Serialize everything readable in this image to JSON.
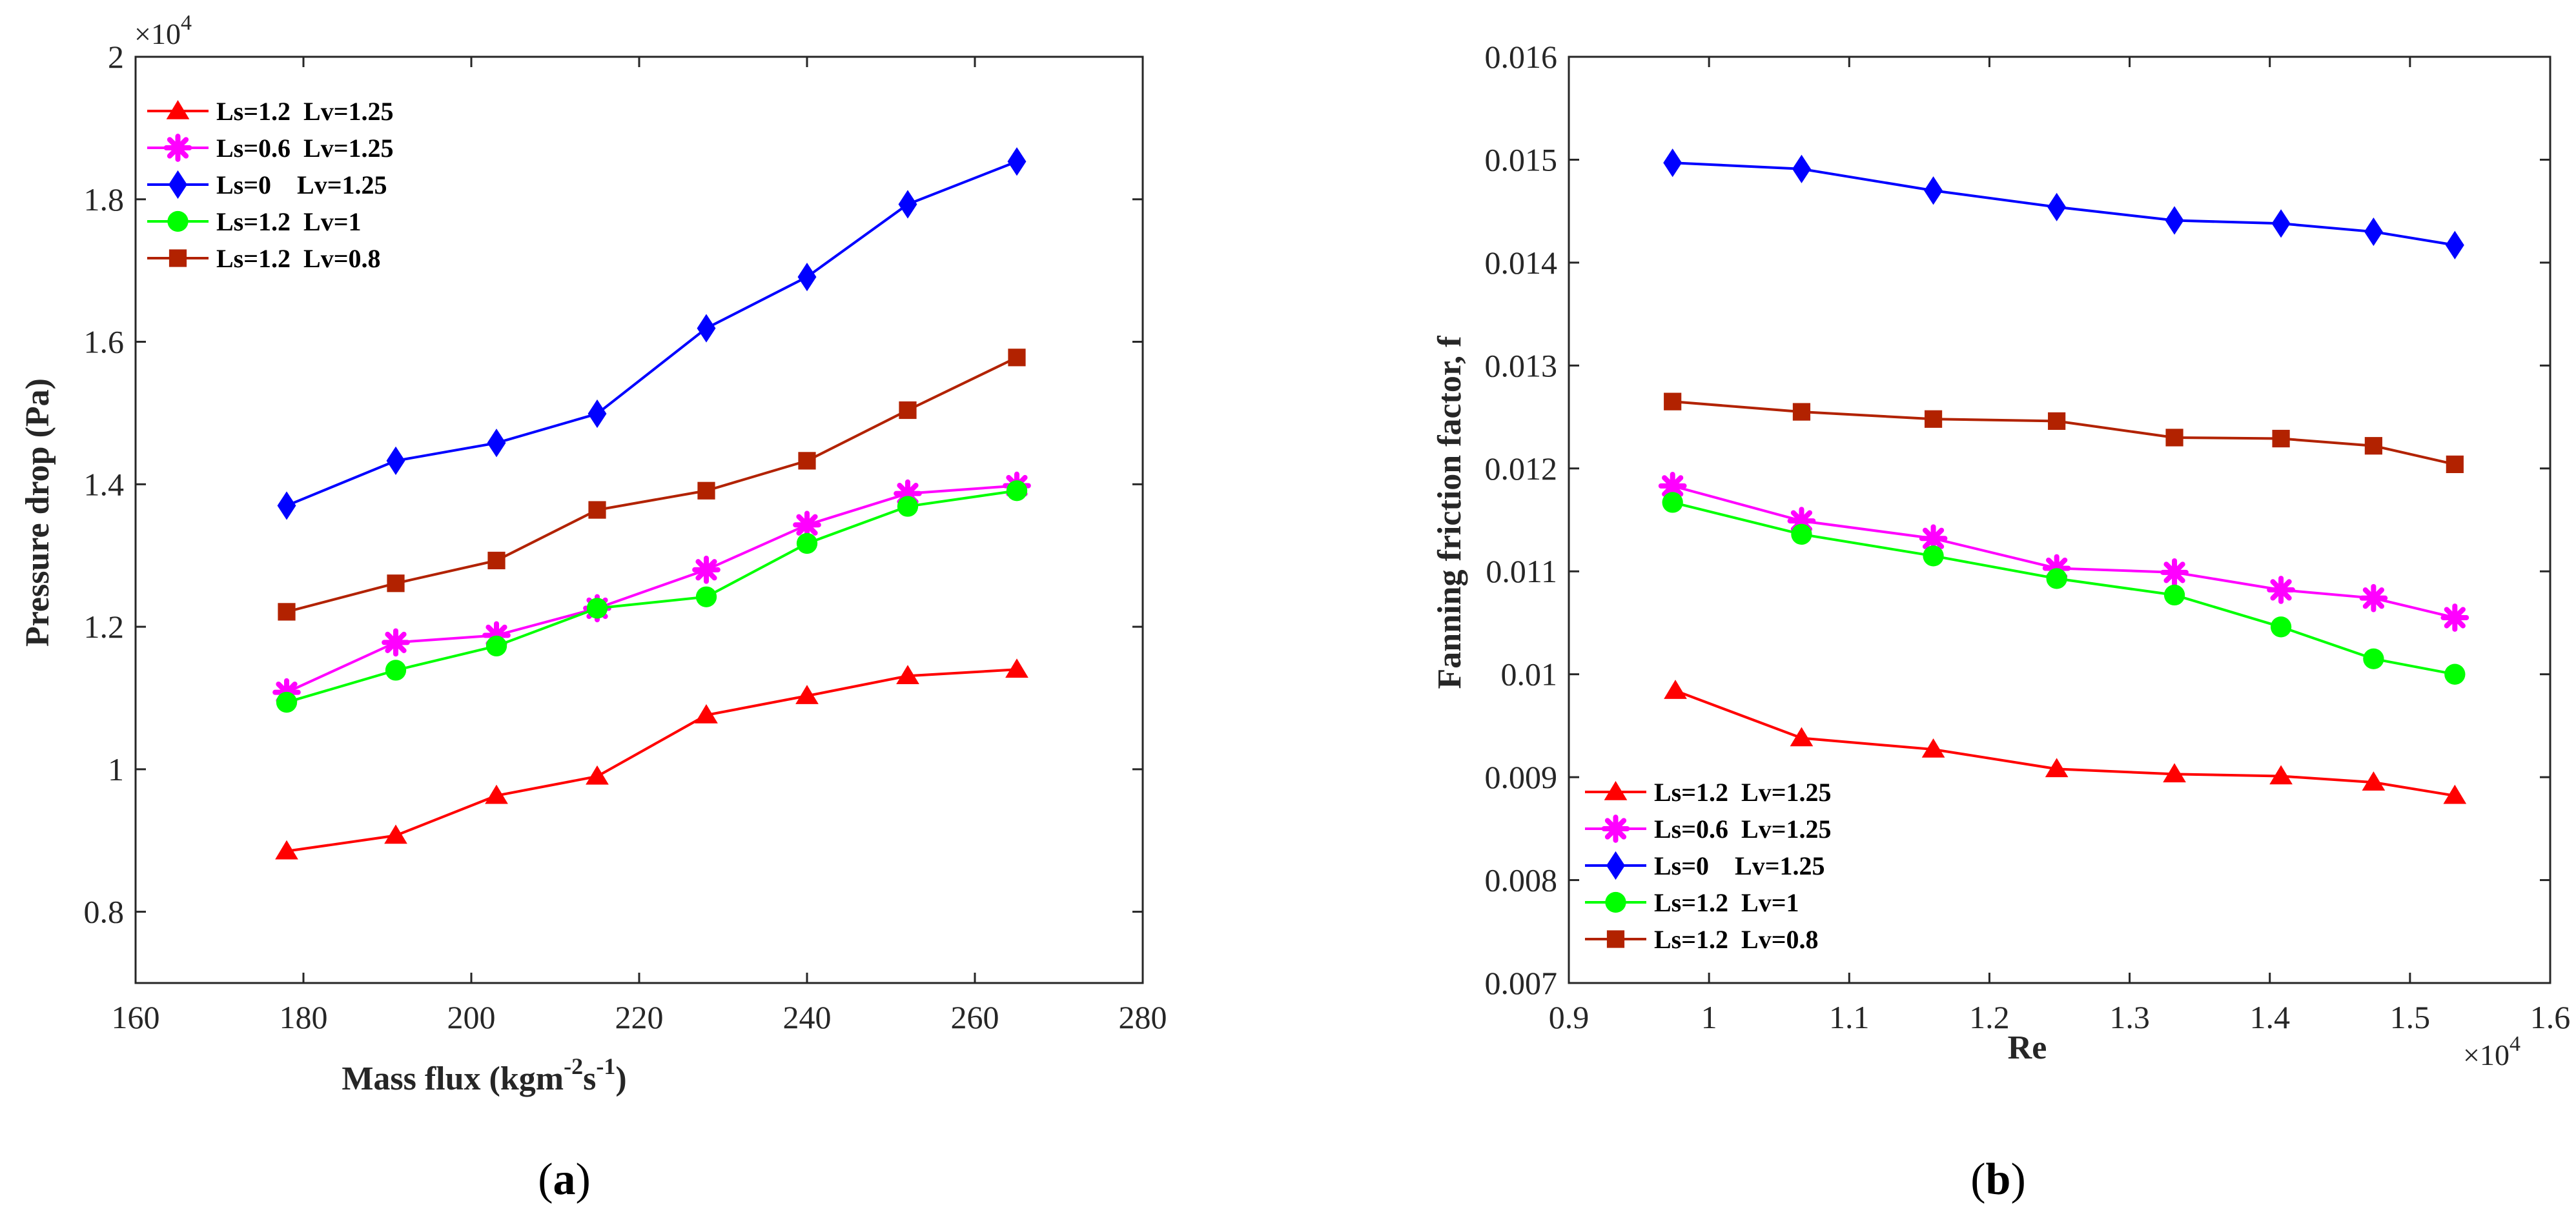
{
  "chart_data": [
    {
      "type": "line",
      "panel": "a",
      "panel_label": {
        "open": "(",
        "letter": "a",
        "close": ")"
      },
      "title": "",
      "xlabel": "Mass flux (kgm",
      "xlabel_sup1": "-2",
      "xlabel_mid": "s",
      "xlabel_sup2": "-1",
      "xlabel_end": ")",
      "ylabel": "Pressure drop (Pa)",
      "y_exponent": {
        "base": "×10",
        "power": "4"
      },
      "xlim": [
        160,
        280
      ],
      "ylim": [
        0.7,
        2.0
      ],
      "x_ticks": [
        160,
        180,
        200,
        220,
        240,
        260,
        280
      ],
      "x_tick_labels": [
        "160",
        "180",
        "200",
        "220",
        "240",
        "260",
        "280"
      ],
      "y_ticks": [
        0.8,
        1.0,
        1.2,
        1.4,
        1.6,
        1.8,
        2.0
      ],
      "y_tick_labels": [
        "0.8",
        "1",
        "1.2",
        "1.4",
        "1.6",
        "1.8",
        "2"
      ],
      "grid": false,
      "legend_position": "top-left",
      "x": [
        178,
        191,
        203,
        215,
        228,
        240,
        252,
        265
      ],
      "series": [
        {
          "name": "Ls=1.2  Lv=1.25",
          "color": "#ff0000",
          "marker": "triangle",
          "values": [
            0.885,
            0.907,
            0.963,
            0.99,
            1.076,
            1.103,
            1.131,
            1.14
          ]
        },
        {
          "name": "Ls=0.6  Lv=1.25",
          "color": "#ff00ff",
          "marker": "star",
          "values": [
            1.108,
            1.178,
            1.188,
            1.226,
            1.28,
            1.343,
            1.387,
            1.398
          ]
        },
        {
          "name": "Ls=0    Lv=1.25",
          "color": "#0000ff",
          "marker": "diamond",
          "values": [
            1.37,
            1.433,
            1.458,
            1.499,
            1.619,
            1.691,
            1.793,
            1.853
          ]
        },
        {
          "name": "Ls=1.2  Lv=1",
          "color": "#00ff00",
          "marker": "circle",
          "values": [
            1.094,
            1.139,
            1.173,
            1.226,
            1.242,
            1.317,
            1.369,
            1.391
          ]
        },
        {
          "name": "Ls=1.2  Lv=0.8",
          "color": "#b22200",
          "marker": "square",
          "values": [
            1.221,
            1.261,
            1.293,
            1.364,
            1.391,
            1.433,
            1.504,
            1.578
          ]
        }
      ]
    },
    {
      "type": "line",
      "panel": "b",
      "panel_label": {
        "open": "(",
        "letter": "b",
        "close": ")"
      },
      "title": "",
      "xlabel": "Re",
      "ylabel": "Fanning friction factor, f",
      "x_exponent": {
        "base": "×10",
        "power": "4"
      },
      "xlim": [
        0.9,
        1.6
      ],
      "ylim": [
        0.007,
        0.016
      ],
      "x_ticks": [
        0.9,
        1.0,
        1.1,
        1.2,
        1.3,
        1.4,
        1.5,
        1.6
      ],
      "x_tick_labels": [
        "0.9",
        "1",
        "1.1",
        "1.2",
        "1.3",
        "1.4",
        "1.5",
        "1.6"
      ],
      "y_ticks": [
        0.007,
        0.008,
        0.009,
        0.01,
        0.011,
        0.012,
        0.013,
        0.014,
        0.015,
        0.016
      ],
      "y_tick_labels": [
        "0.007",
        "0.008",
        "0.009",
        "0.01",
        "0.011",
        "0.012",
        "0.013",
        "0.014",
        "0.015",
        "0.016"
      ],
      "grid": false,
      "legend_position": "bottom-left",
      "series": [
        {
          "name": "Ls=1.2  Lv=1.25",
          "color": "#ff0000",
          "marker": "triangle",
          "x": [
            0.976,
            1.066,
            1.16,
            1.248,
            1.332,
            1.408,
            1.474,
            1.532
          ],
          "values": [
            0.00984,
            0.00938,
            0.00927,
            0.00908,
            0.00903,
            0.00901,
            0.00895,
            0.00882
          ]
        },
        {
          "name": "Ls=0.6  Lv=1.25",
          "color": "#ff00ff",
          "marker": "star",
          "x": [
            0.974,
            1.066,
            1.16,
            1.248,
            1.332,
            1.408,
            1.474,
            1.532
          ],
          "values": [
            0.01183,
            0.01149,
            0.01132,
            0.01103,
            0.01099,
            0.01082,
            0.01074,
            0.01055
          ]
        },
        {
          "name": "Ls=0    Lv=1.25",
          "color": "#0000ff",
          "marker": "diamond",
          "x": [
            0.974,
            1.066,
            1.16,
            1.248,
            1.332,
            1.408,
            1.474,
            1.532
          ],
          "values": [
            0.01497,
            0.01491,
            0.0147,
            0.01454,
            0.01441,
            0.01438,
            0.0143,
            0.01417
          ]
        },
        {
          "name": "Ls=1.2  Lv=1",
          "color": "#00ff00",
          "marker": "circle",
          "x": [
            0.974,
            1.066,
            1.16,
            1.248,
            1.332,
            1.408,
            1.474,
            1.532
          ],
          "values": [
            0.01167,
            0.01136,
            0.01115,
            0.01093,
            0.01077,
            0.01046,
            0.01015,
            0.01
          ]
        },
        {
          "name": "Ls=1.2  Lv=0.8",
          "color": "#b22200",
          "marker": "square",
          "x": [
            0.974,
            1.066,
            1.16,
            1.248,
            1.332,
            1.408,
            1.474,
            1.532
          ],
          "values": [
            0.01265,
            0.01255,
            0.01248,
            0.01246,
            0.0123,
            0.01229,
            0.01222,
            0.01204
          ]
        }
      ]
    }
  ]
}
